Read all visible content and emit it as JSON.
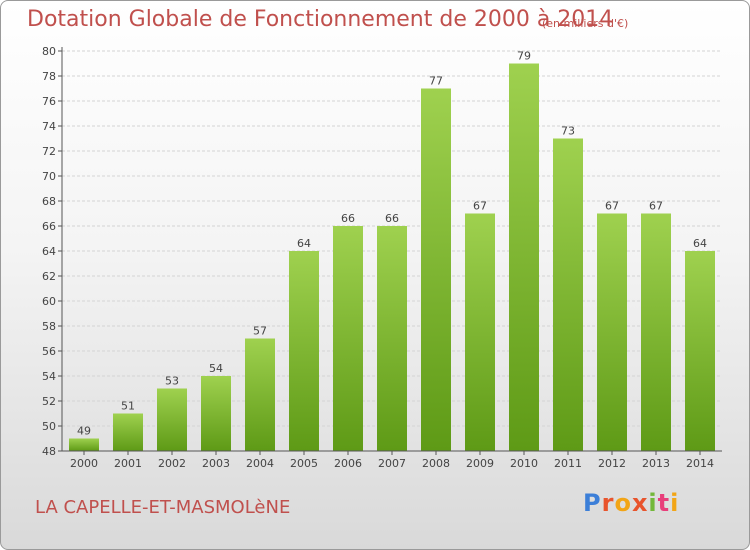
{
  "header": {
    "title": "Dotation Globale de Fonctionnement de 2000 à 2014",
    "unit": "(en milliers d'€)"
  },
  "footer": {
    "commune": "LA CAPELLE-ET-MASMOLèNE",
    "logo": "Proxiti"
  },
  "colors": {
    "accent": "#c0504d",
    "bar_top": "#9fd14f",
    "bar_bottom": "#5e9a16"
  },
  "chart_data": {
    "type": "bar",
    "title": "Dotation Globale de Fonctionnement de 2000 à 2014",
    "subtitle": "(en milliers d'€)",
    "categories": [
      "2000",
      "2001",
      "2002",
      "2003",
      "2004",
      "2005",
      "2006",
      "2007",
      "2008",
      "2009",
      "2010",
      "2011",
      "2012",
      "2013",
      "2014"
    ],
    "values": [
      49,
      51,
      53,
      54,
      57,
      64,
      66,
      66,
      77,
      67,
      79,
      73,
      67,
      67,
      64
    ],
    "ylim": [
      48,
      80
    ],
    "yticks": [
      48,
      50,
      52,
      54,
      56,
      58,
      60,
      62,
      64,
      66,
      68,
      70,
      72,
      74,
      76,
      78,
      80
    ],
    "grid": true,
    "legend": "none",
    "data_labels": true
  }
}
